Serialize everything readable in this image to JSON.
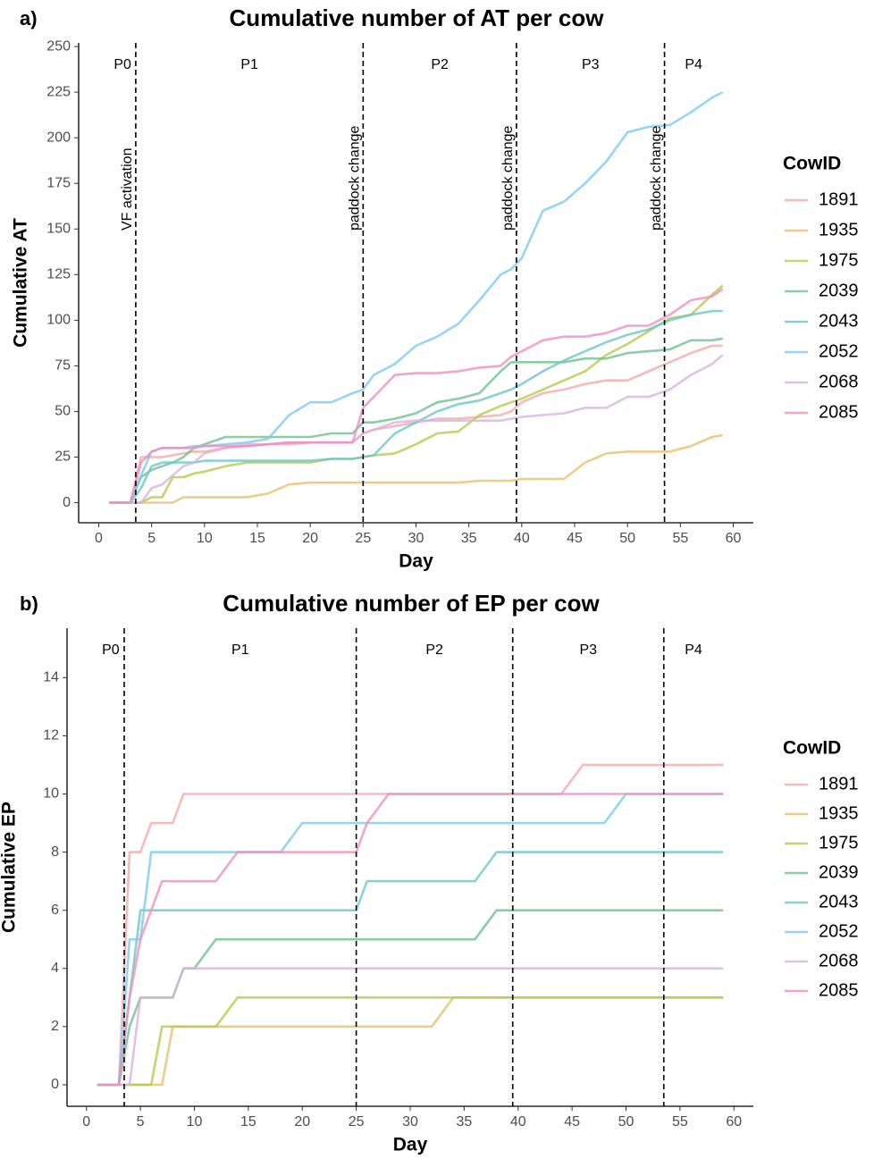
{
  "chart_data": [
    {
      "type": "line",
      "panel_label": "a)",
      "title": "Cumulative number of AT per cow",
      "x_label": "Day",
      "y_label": "Cumulative AT",
      "legend_title": "CowID",
      "x": [
        1,
        3,
        4,
        5,
        6,
        7,
        8,
        9,
        10,
        12,
        14,
        16,
        18,
        20,
        22,
        24,
        25,
        26,
        28,
        30,
        32,
        34,
        36,
        38,
        39,
        40,
        42,
        44,
        46,
        48,
        50,
        52,
        54,
        56,
        58,
        59
      ],
      "xlim": [
        -1.9,
        61.9
      ],
      "ylim": [
        -11,
        252
      ],
      "xticks": [
        0,
        5,
        10,
        15,
        20,
        25,
        30,
        35,
        40,
        45,
        50,
        55,
        60
      ],
      "yticks": [
        0,
        25,
        50,
        75,
        100,
        125,
        150,
        175,
        200,
        225,
        250
      ],
      "vlines": [
        3.5,
        25,
        39.5,
        53.5
      ],
      "vline_labels": [
        "VF activation",
        "paddock change",
        "paddock change",
        "paddock change"
      ],
      "periods": [
        "P0",
        "P1",
        "P2",
        "P3",
        "P4"
      ],
      "series": [
        {
          "name": "1891",
          "color": "#f4a9a8",
          "values": [
            0,
            0,
            25,
            25,
            25,
            26,
            27,
            28,
            28,
            30,
            31,
            32,
            32,
            33,
            33,
            33,
            38,
            40,
            42,
            44,
            46,
            46,
            47,
            48,
            50,
            55,
            60,
            62,
            65,
            67,
            67,
            72,
            77,
            82,
            86,
            86
          ]
        },
        {
          "name": "1935",
          "color": "#e6c06a",
          "values": [
            0,
            0,
            0,
            0,
            0,
            0,
            3,
            3,
            3,
            3,
            3,
            5,
            10,
            11,
            11,
            11,
            11,
            11,
            11,
            11,
            11,
            11,
            12,
            12,
            12,
            13,
            13,
            13,
            22,
            27,
            28,
            28,
            28,
            31,
            36,
            37
          ]
        },
        {
          "name": "1975",
          "color": "#b5c94a",
          "values": [
            0,
            0,
            0,
            3,
            3,
            14,
            14,
            16,
            17,
            20,
            22,
            22,
            22,
            22,
            24,
            24,
            25,
            26,
            27,
            32,
            38,
            39,
            48,
            53,
            55,
            57,
            62,
            67,
            72,
            81,
            87,
            94,
            101,
            103,
            114,
            119
          ]
        },
        {
          "name": "2039",
          "color": "#6fc18e",
          "values": [
            0,
            0,
            14,
            18,
            20,
            22,
            25,
            30,
            32,
            36,
            36,
            36,
            36,
            36,
            38,
            38,
            44,
            44,
            46,
            49,
            55,
            57,
            60,
            72,
            77,
            77,
            77,
            77,
            79,
            79,
            82,
            83,
            84,
            89,
            89,
            90
          ]
        },
        {
          "name": "2043",
          "color": "#6cc6c9",
          "values": [
            0,
            0,
            8,
            20,
            22,
            22,
            22,
            22,
            23,
            23,
            23,
            23,
            23,
            23,
            24,
            24,
            25,
            26,
            38,
            44,
            50,
            54,
            56,
            60,
            62,
            65,
            72,
            78,
            83,
            88,
            92,
            95,
            100,
            103,
            105,
            105
          ]
        },
        {
          "name": "2052",
          "color": "#7ccbee",
          "values": [
            0,
            0,
            15,
            28,
            30,
            30,
            30,
            31,
            31,
            32,
            33,
            35,
            48,
            55,
            55,
            60,
            62,
            70,
            76,
            86,
            91,
            98,
            111,
            125,
            128,
            134,
            160,
            165,
            175,
            187,
            203,
            206,
            207,
            214,
            222,
            225
          ]
        },
        {
          "name": "2068",
          "color": "#d7b3e0",
          "values": [
            0,
            0,
            0,
            8,
            10,
            15,
            20,
            22,
            27,
            30,
            32,
            32,
            33,
            33,
            33,
            33,
            38,
            40,
            44,
            45,
            45,
            45,
            45,
            45,
            46,
            47,
            48,
            49,
            52,
            52,
            58,
            58,
            62,
            70,
            76,
            81
          ]
        },
        {
          "name": "2085",
          "color": "#ef8fbf",
          "values": [
            0,
            0,
            22,
            28,
            30,
            30,
            30,
            30,
            31,
            31,
            31,
            32,
            33,
            33,
            33,
            33,
            52,
            58,
            70,
            71,
            71,
            72,
            74,
            75,
            80,
            83,
            89,
            91,
            91,
            93,
            97,
            97,
            103,
            111,
            113,
            117
          ]
        }
      ]
    },
    {
      "type": "line",
      "panel_label": "b)",
      "title": "Cumulative number of EP per cow",
      "x_label": "Day",
      "y_label": "Cumulative EP",
      "legend_title": "CowID",
      "x": [
        1,
        3,
        4,
        5,
        6,
        7,
        8,
        9,
        10,
        12,
        14,
        16,
        18,
        20,
        22,
        24,
        25,
        26,
        28,
        30,
        32,
        34,
        36,
        38,
        39,
        40,
        42,
        44,
        46,
        48,
        50,
        52,
        54,
        56,
        58,
        59
      ],
      "xlim": [
        -1.8,
        61.8
      ],
      "ylim": [
        -0.74,
        15.7
      ],
      "xticks": [
        0,
        5,
        10,
        15,
        20,
        25,
        30,
        35,
        40,
        45,
        50,
        55,
        60
      ],
      "yticks": [
        0,
        2,
        4,
        6,
        8,
        10,
        12,
        14
      ],
      "vlines": [
        3.5,
        25,
        39.5,
        53.5
      ],
      "periods": [
        "P0",
        "P1",
        "P2",
        "P3",
        "P4"
      ],
      "series": [
        {
          "name": "1891",
          "color": "#f4a9a8",
          "values": [
            0,
            0,
            8,
            8,
            9,
            9,
            9,
            10,
            10,
            10,
            10,
            10,
            10,
            10,
            10,
            10,
            10,
            10,
            10,
            10,
            10,
            10,
            10,
            10,
            10,
            10,
            10,
            10,
            11,
            11,
            11,
            11,
            11,
            11,
            11,
            11
          ]
        },
        {
          "name": "1935",
          "color": "#e6c06a",
          "values": [
            0,
            0,
            0,
            0,
            0,
            0,
            2,
            2,
            2,
            2,
            2,
            2,
            2,
            2,
            2,
            2,
            2,
            2,
            2,
            2,
            2,
            3,
            3,
            3,
            3,
            3,
            3,
            3,
            3,
            3,
            3,
            3,
            3,
            3,
            3,
            3
          ]
        },
        {
          "name": "1975",
          "color": "#b5c94a",
          "values": [
            0,
            0,
            0,
            0,
            0,
            2,
            2,
            2,
            2,
            2,
            3,
            3,
            3,
            3,
            3,
            3,
            3,
            3,
            3,
            3,
            3,
            3,
            3,
            3,
            3,
            3,
            3,
            3,
            3,
            3,
            3,
            3,
            3,
            3,
            3,
            3
          ]
        },
        {
          "name": "2039",
          "color": "#6fc18e",
          "values": [
            0,
            0,
            2,
            3,
            3,
            3,
            3,
            4,
            4,
            5,
            5,
            5,
            5,
            5,
            5,
            5,
            5,
            5,
            5,
            5,
            5,
            5,
            5,
            6,
            6,
            6,
            6,
            6,
            6,
            6,
            6,
            6,
            6,
            6,
            6,
            6
          ]
        },
        {
          "name": "2043",
          "color": "#6cc6c9",
          "values": [
            0,
            0,
            3,
            6,
            6,
            6,
            6,
            6,
            6,
            6,
            6,
            6,
            6,
            6,
            6,
            6,
            6,
            7,
            7,
            7,
            7,
            7,
            7,
            8,
            8,
            8,
            8,
            8,
            8,
            8,
            8,
            8,
            8,
            8,
            8,
            8
          ]
        },
        {
          "name": "2052",
          "color": "#7ccbee",
          "values": [
            0,
            0,
            5,
            5,
            8,
            8,
            8,
            8,
            8,
            8,
            8,
            8,
            8,
            9,
            9,
            9,
            9,
            9,
            9,
            9,
            9,
            9,
            9,
            9,
            9,
            9,
            9,
            9,
            9,
            9,
            10,
            10,
            10,
            10,
            10,
            10
          ]
        },
        {
          "name": "2068",
          "color": "#d7b3e0",
          "values": [
            0,
            0,
            0,
            3,
            3,
            3,
            3,
            4,
            4,
            4,
            4,
            4,
            4,
            4,
            4,
            4,
            4,
            4,
            4,
            4,
            4,
            4,
            4,
            4,
            4,
            4,
            4,
            4,
            4,
            4,
            4,
            4,
            4,
            4,
            4,
            4
          ]
        },
        {
          "name": "2085",
          "color": "#ef8fbf",
          "values": [
            0,
            0,
            3,
            5,
            6,
            7,
            7,
            7,
            7,
            7,
            8,
            8,
            8,
            8,
            8,
            8,
            8,
            9,
            10,
            10,
            10,
            10,
            10,
            10,
            10,
            10,
            10,
            10,
            10,
            10,
            10,
            10,
            10,
            10,
            10,
            10
          ]
        }
      ]
    }
  ]
}
